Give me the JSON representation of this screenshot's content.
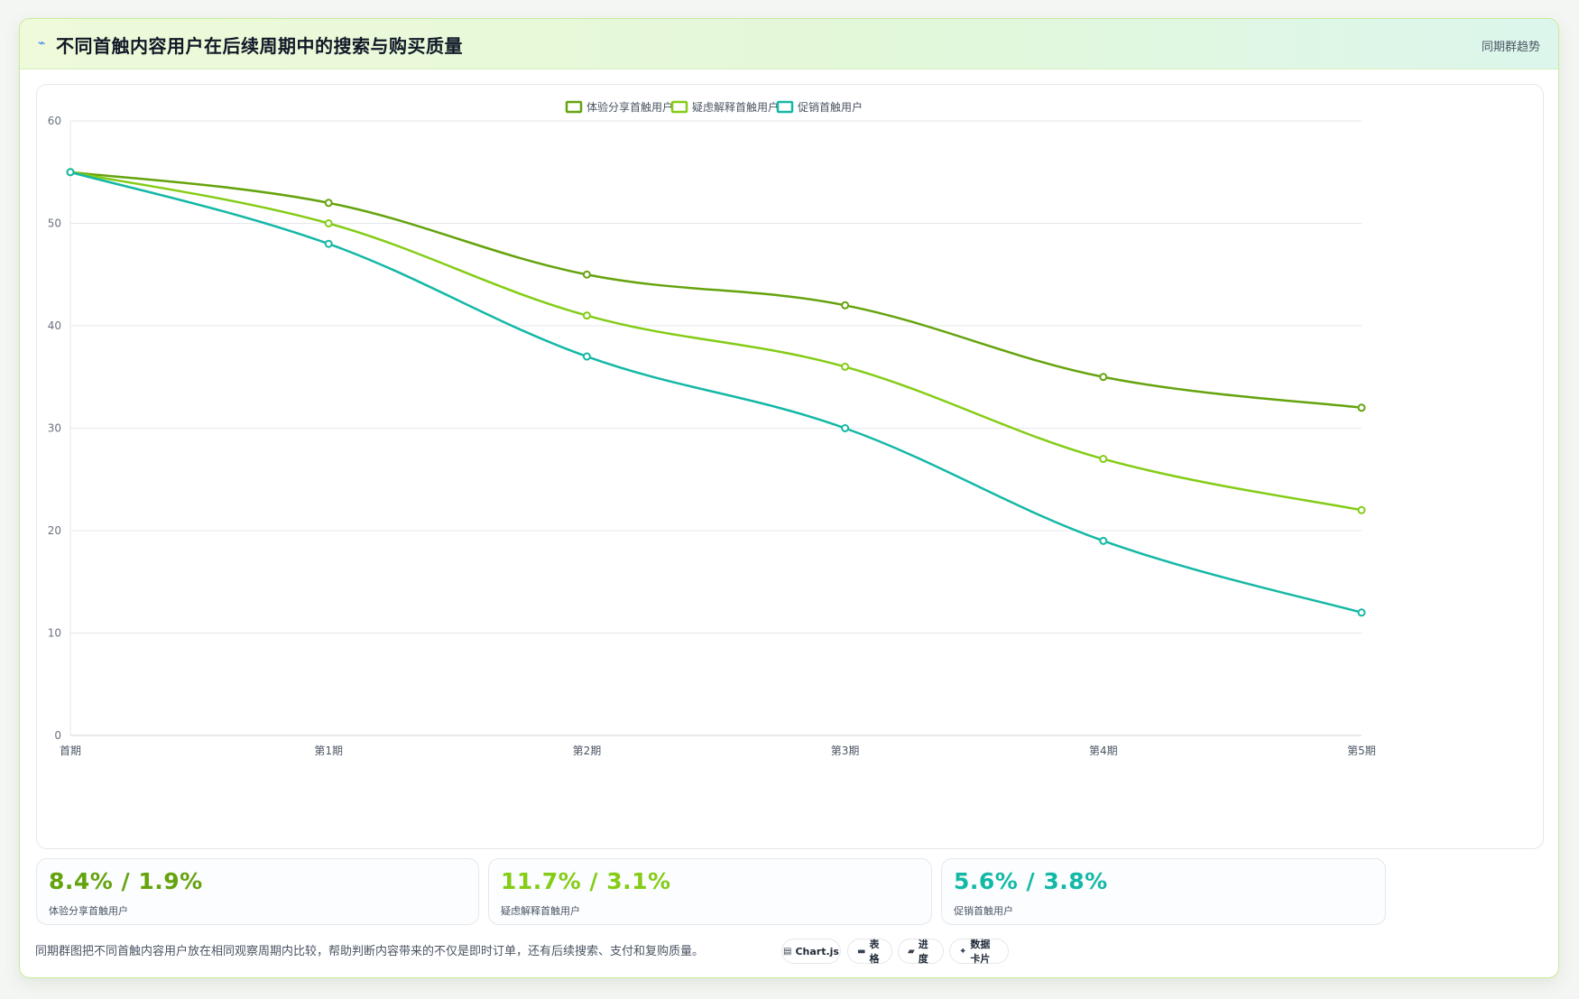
{
  "header": {
    "title": "不同首触内容用户在后续周期中的搜索与购买质量",
    "tag": "同期群趋势"
  },
  "chart_data": {
    "type": "line",
    "categories": [
      "首期",
      "第1期",
      "第2期",
      "第3期",
      "第4期",
      "第5期"
    ],
    "series": [
      {
        "name": "体验分享首触用户",
        "color": "#65a30d",
        "values": [
          55,
          52,
          45,
          42,
          35,
          32
        ]
      },
      {
        "name": "疑虑解释首触用户",
        "color": "#84cc16",
        "values": [
          55,
          50,
          41,
          36,
          27,
          22
        ]
      },
      {
        "name": "促销首触用户",
        "color": "#14b8a6",
        "values": [
          55,
          48,
          37,
          30,
          19,
          12
        ]
      }
    ],
    "ylim": [
      0,
      60
    ],
    "yticks": [
      0,
      10,
      20,
      30,
      40,
      50,
      60
    ],
    "grid": true,
    "legend_position": "top-center"
  },
  "stats": [
    {
      "value": "8.4% / 1.9%",
      "label": "体验分享首触用户",
      "color": "#65a30d"
    },
    {
      "value": "11.7% / 3.1%",
      "label": "疑虑解释首触用户",
      "color": "#84cc16"
    },
    {
      "value": "5.6% / 3.8%",
      "label": "促销首触用户",
      "color": "#14b8a6"
    }
  ],
  "footer": {
    "description": "同期群图把不同首触内容用户放在相同观察周期内比较，帮助判断内容带来的不仅是即时订单，还有后续搜索、支付和复购质量。",
    "chips": [
      {
        "icon": "chart-icon",
        "label": "Chart.js"
      },
      {
        "icon": "table-icon",
        "label": "表格"
      },
      {
        "icon": "progress-icon",
        "label": "进度"
      },
      {
        "icon": "card-icon",
        "label": "数据卡片"
      }
    ]
  }
}
